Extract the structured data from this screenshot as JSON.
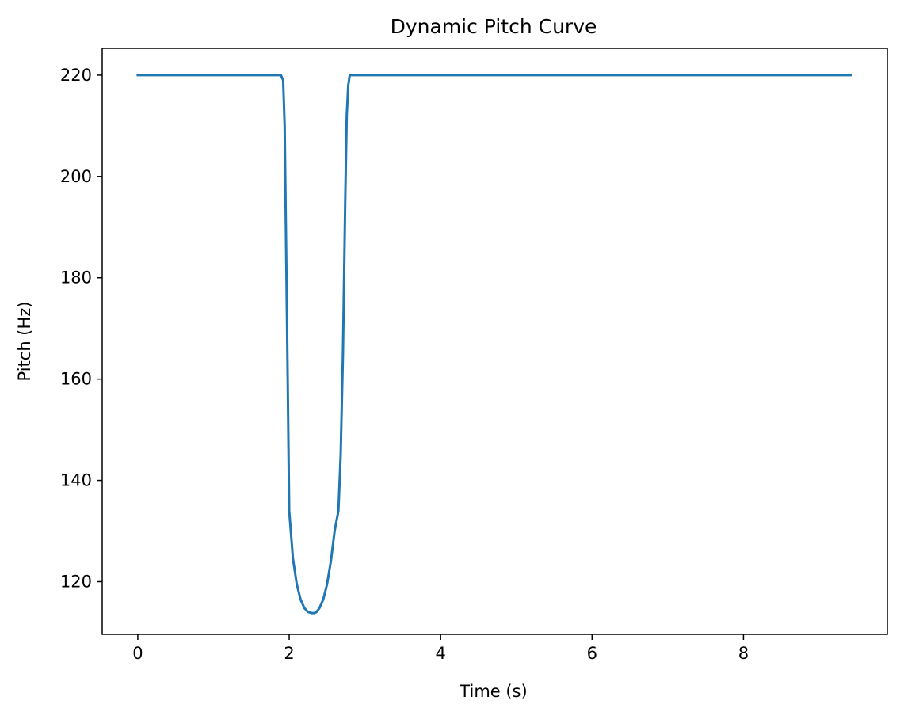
{
  "chart_data": {
    "type": "line",
    "title": "Dynamic Pitch Curve",
    "xlabel": "Time (s)",
    "ylabel": "Pitch (Hz)",
    "xlim": [
      -0.47,
      9.9
    ],
    "ylim": [
      109.6,
      225.3
    ],
    "x_ticks": [
      0,
      2,
      4,
      6,
      8
    ],
    "y_ticks": [
      120,
      140,
      160,
      180,
      200,
      220
    ],
    "grid": false,
    "legend": "none",
    "series": [
      {
        "color": "#1f77b4",
        "x": [
          0.0,
          1.89,
          1.92,
          1.94,
          1.96,
          1.98,
          2.0,
          2.05,
          2.1,
          2.15,
          2.2,
          2.25,
          2.3,
          2.33,
          2.36,
          2.4,
          2.45,
          2.5,
          2.55,
          2.6,
          2.65,
          2.68,
          2.71,
          2.74,
          2.76,
          2.78,
          2.8,
          9.42
        ],
        "y": [
          220,
          220,
          219,
          210,
          185,
          160,
          134,
          124.5,
          119.5,
          116.5,
          114.8,
          114,
          113.8,
          113.8,
          114,
          114.8,
          116.5,
          119.5,
          124,
          130,
          134,
          145,
          165,
          195,
          212,
          218,
          220,
          220
        ]
      }
    ]
  }
}
